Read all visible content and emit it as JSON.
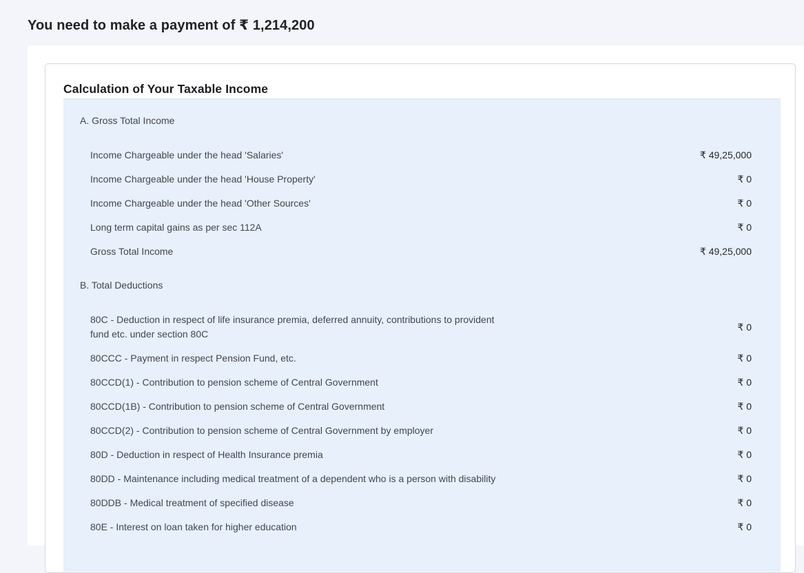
{
  "colors": {
    "page_background": "#f3f5fa",
    "content_background": "#ffffff",
    "panel_background": "#e7f0fb",
    "card_border": "#d6d7e2",
    "heading_text": "#1b1c1f",
    "label_text": "#44464e",
    "value_text": "#26272c"
  },
  "header": {
    "title": "You need to make a payment of ₹ 1,214,200"
  },
  "card": {
    "title": "Calculation of Your Taxable Income",
    "sections": [
      {
        "id": "gross-total-income",
        "label": "A. Gross Total Income",
        "rows": [
          {
            "label": "Income Chargeable under the head 'Salaries'",
            "value": "₹ 49,25,000"
          },
          {
            "label": "Income Chargeable under the head 'House Property'",
            "value": "₹ 0"
          },
          {
            "label": "Income Chargeable under the head 'Other Sources'",
            "value": "₹ 0"
          },
          {
            "label": "Long term capital gains as per sec 112A",
            "value": "₹ 0"
          },
          {
            "label": "Gross Total Income",
            "value": "₹ 49,25,000"
          }
        ]
      },
      {
        "id": "total-deductions",
        "label": "B. Total Deductions",
        "rows": [
          {
            "label": "80C - Deduction in respect of life insurance premia, deferred annuity, contributions to provident fund etc. under section 80C",
            "value": "₹ 0"
          },
          {
            "label": "80CCC - Payment in respect Pension Fund, etc.",
            "value": "₹ 0"
          },
          {
            "label": "80CCD(1) - Contribution to pension scheme of Central Government",
            "value": "₹ 0"
          },
          {
            "label": "80CCD(1B) - Contribution to pension scheme of Central Government",
            "value": "₹ 0"
          },
          {
            "label": "80CCD(2) - Contribution to pension scheme of Central Government by employer",
            "value": "₹ 0"
          },
          {
            "label": "80D - Deduction in respect of Health Insurance premia",
            "value": "₹ 0"
          },
          {
            "label": "80DD - Maintenance including medical treatment of a dependent who is a person with disability",
            "value": "₹ 0"
          },
          {
            "label": "80DDB - Medical treatment of specified disease",
            "value": "₹ 0"
          },
          {
            "label": "80E - Interest on loan taken for higher education",
            "value": "₹ 0"
          }
        ]
      }
    ]
  }
}
